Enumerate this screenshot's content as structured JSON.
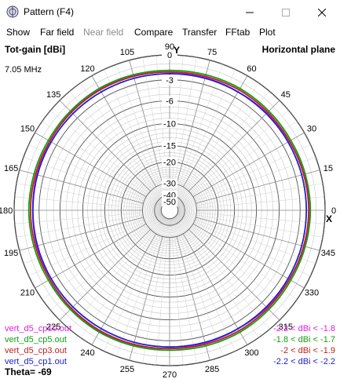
{
  "window": {
    "title": "Pattern    (F4)",
    "controls": [
      "minimize",
      "maximize",
      "close"
    ],
    "icons": {
      "app": "antenna-pattern-app-icon",
      "minimize": "minimize-icon",
      "maximize": "maximize-icon",
      "close": "close-icon"
    }
  },
  "menu": [
    "Show",
    "Far field",
    "Near field",
    "Compare",
    "Transfer",
    "FFtab",
    "Plot"
  ],
  "menu_disabled": [
    "Near field"
  ],
  "plot": {
    "left_header": "Tot-gain [dBi]",
    "right_header": "Horizontal plane",
    "frequency": "7.05 MHz",
    "theta": "Theta= -69",
    "center_marker": "Y",
    "east_marker": "X",
    "cursor_marker": "x"
  },
  "chart_data": {
    "type": "polar",
    "angular_labels": [
      "0",
      "15",
      "30",
      "45",
      "60",
      "75",
      "90",
      "105",
      "120",
      "135",
      "150",
      "165",
      "180",
      "195",
      "210",
      "225",
      "240",
      "255",
      "270",
      "285",
      "300",
      "315",
      "330",
      "345"
    ],
    "radial_labels": [
      "0",
      "-3",
      "-6",
      "-10",
      "-15",
      "-20",
      "-30",
      "-40",
      "-50"
    ],
    "radial_label_positions": [
      0,
      -3,
      -6,
      -10,
      -15,
      -20,
      -30,
      -40,
      -50
    ],
    "series": [
      {
        "name": "vert_d5_cp10.out",
        "color": "#e020e0",
        "range": "-2.2 < dBi < -1.8",
        "gain": [
          -1.8,
          -1.9,
          -2.0,
          -2.1,
          -2.2,
          -2.1,
          -2.0,
          -1.9,
          -1.8,
          -1.9,
          -2.0,
          -2.1,
          -2.2,
          -2.1,
          -2.0,
          -1.9,
          -1.8,
          -1.9,
          -2.0,
          -2.1,
          -2.2,
          -2.1,
          -2.0,
          -1.9
        ]
      },
      {
        "name": "vert_d5_cp5.out",
        "color": "#10a010",
        "range": "-1.8 < dBi < -1.7",
        "gain": [
          -1.7,
          -1.75,
          -1.8,
          -1.75,
          -1.7,
          -1.75,
          -1.8,
          -1.75,
          -1.7,
          -1.75,
          -1.8,
          -1.75,
          -1.7,
          -1.75,
          -1.8,
          -1.75,
          -1.7,
          -1.75,
          -1.8,
          -1.75,
          -1.7,
          -1.75,
          -1.8,
          -1.75
        ]
      },
      {
        "name": "vert_d5_cp3.out",
        "color": "#c02020",
        "range": "-2 < dBi < -1.9",
        "gain": [
          -1.9,
          -1.95,
          -2.0,
          -1.95,
          -1.9,
          -1.95,
          -2.0,
          -1.95,
          -1.9,
          -1.95,
          -2.0,
          -1.95,
          -1.9,
          -1.95,
          -2.0,
          -1.95,
          -1.9,
          -1.95,
          -2.0,
          -1.95,
          -1.9,
          -1.95,
          -2.0,
          -1.95
        ]
      },
      {
        "name": "vert_d5_cp1.out",
        "color": "#2020d0",
        "range": "-2.2 < dBi < -2.2",
        "gain": [
          -2.2,
          -2.2,
          -2.2,
          -2.2,
          -2.2,
          -2.2,
          -2.2,
          -2.2,
          -2.2,
          -2.2,
          -2.2,
          -2.2,
          -2.2,
          -2.2,
          -2.2,
          -2.2,
          -2.2,
          -2.2,
          -2.2,
          -2.2,
          -2.2,
          -2.2,
          -2.2,
          -2.2
        ]
      }
    ]
  }
}
